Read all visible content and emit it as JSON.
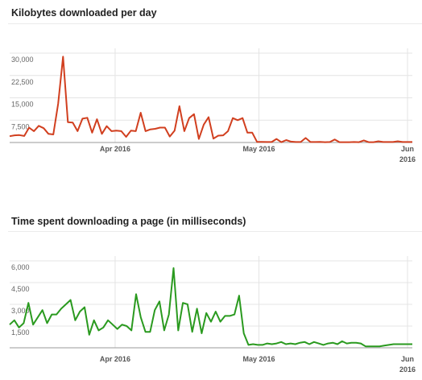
{
  "chart_data": [
    {
      "type": "line",
      "title": "Kilobytes downloaded per day",
      "color": "#d13f1f",
      "ylim": [
        0,
        30000
      ],
      "yticks": [
        "30,000",
        "22,500",
        "15,000",
        "7,500"
      ],
      "ytick_values": [
        30000,
        22500,
        15000,
        7500
      ],
      "xticks": [
        {
          "label": "Apr 2016",
          "day": 22
        },
        {
          "label": "May 2016",
          "day": 52
        },
        {
          "label": "Jun",
          "label2": "2016",
          "day": 83
        }
      ],
      "grid": true,
      "x_start": "2016-03-10",
      "series": [
        {
          "values": [
            2100,
            2400,
            2500,
            2200,
            5000,
            3800,
            5600,
            4800,
            2900,
            2700,
            13000,
            28800,
            6800,
            6700,
            3800,
            8000,
            8300,
            3300,
            7800,
            2900,
            5500,
            3800,
            4000,
            3800,
            1900,
            4000,
            3800,
            10000,
            3800,
            4400,
            4600,
            5000,
            5000,
            2000,
            4000,
            12200,
            3800,
            8200,
            9500,
            1200,
            6000,
            8500,
            1300,
            2300,
            2400,
            3800,
            8200,
            7500,
            8200,
            3300,
            3300,
            200,
            200,
            150,
            150,
            1200,
            100,
            800,
            300,
            150,
            150,
            1500,
            150,
            150,
            200,
            100,
            150,
            1000,
            100,
            100,
            100,
            150,
            100,
            700,
            100,
            100,
            400,
            150,
            150,
            150,
            400,
            150,
            150,
            150
          ]
        }
      ]
    },
    {
      "type": "line",
      "title": "Time spent downloading a page (in milliseconds)",
      "color": "#2a9a1f",
      "ylim": [
        0,
        6000
      ],
      "yticks": [
        "6,000",
        "4,500",
        "3,000",
        "1,500"
      ],
      "ytick_values": [
        6000,
        4500,
        3000,
        1500
      ],
      "xticks": [
        {
          "label": "Apr 2016",
          "day": 22
        },
        {
          "label": "May 2016",
          "day": 52
        },
        {
          "label": "Jun",
          "label2": "2016",
          "day": 83
        }
      ],
      "grid": true,
      "x_start": "2016-03-10",
      "series": [
        {
          "values": [
            1600,
            1900,
            1400,
            1700,
            3100,
            1600,
            2100,
            2600,
            1700,
            2300,
            2300,
            2700,
            3000,
            3300,
            1900,
            2500,
            2800,
            900,
            1900,
            1200,
            1400,
            1900,
            1600,
            1300,
            1600,
            1500,
            1200,
            3700,
            2100,
            1100,
            1100,
            2600,
            3200,
            1200,
            2300,
            5500,
            1200,
            3100,
            3000,
            1100,
            2700,
            1000,
            2400,
            1800,
            2500,
            1800,
            2200,
            2200,
            2300,
            3600,
            1000,
            200,
            250,
            200,
            200,
            300,
            250,
            300,
            400,
            250,
            300,
            250,
            350,
            400,
            250,
            400,
            300,
            200,
            300,
            350,
            250,
            450,
            300,
            350,
            350,
            300,
            100,
            100,
            100,
            100,
            150,
            200,
            250,
            250,
            250,
            250,
            250
          ]
        }
      ]
    }
  ]
}
